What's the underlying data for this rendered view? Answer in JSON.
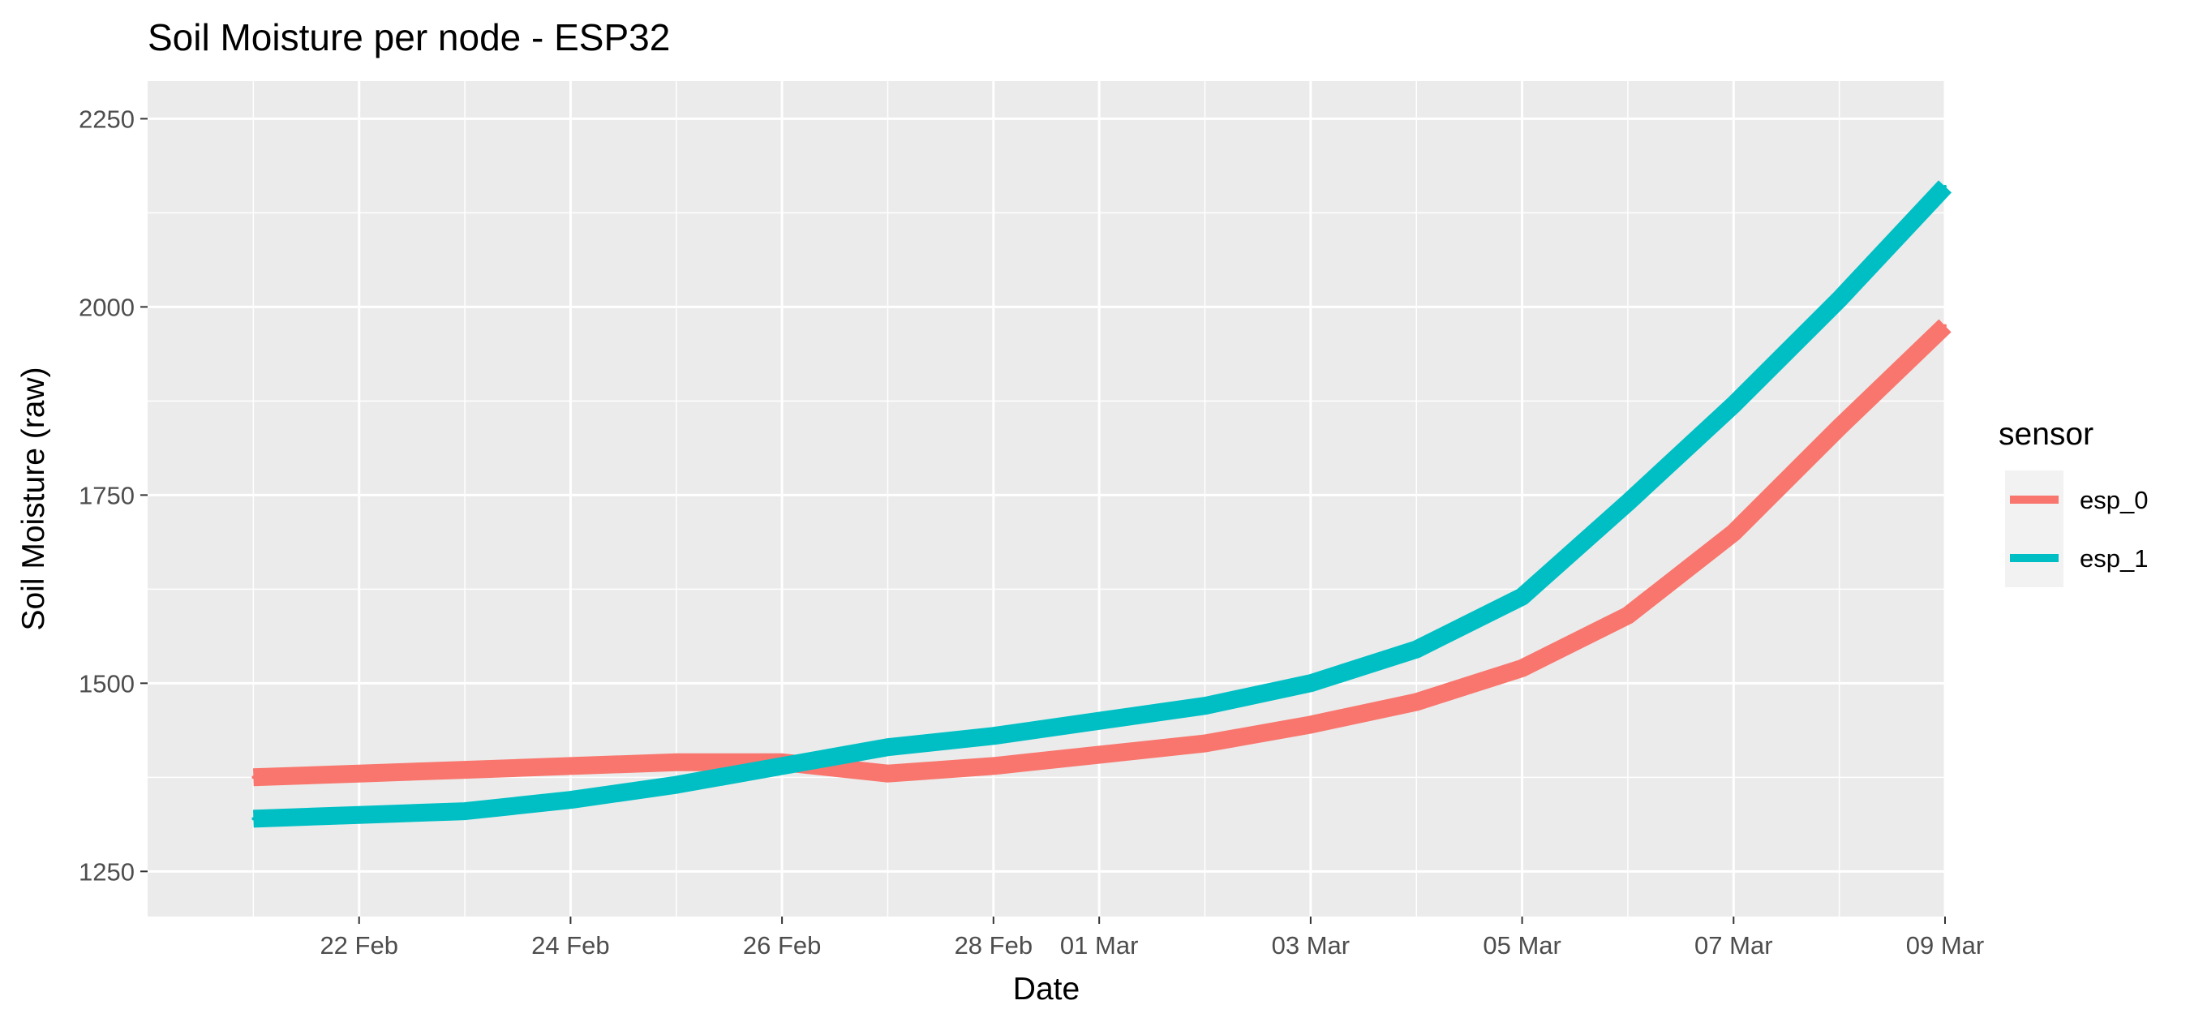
{
  "chart_data": {
    "type": "line",
    "title": "Soil Moisture per node - ESP32",
    "xlabel": "Date",
    "ylabel": "Soil Moisture (raw)",
    "xlim": [
      "2025-02-20",
      "2025-03-09"
    ],
    "ylim": [
      1190,
      2300
    ],
    "x_tick_labels": [
      "22 Feb",
      "24 Feb",
      "26 Feb",
      "28 Feb",
      "01 Mar",
      "03 Mar",
      "05 Mar",
      "07 Mar",
      "09 Mar"
    ],
    "x_ticks": [
      "2025-02-22",
      "2025-02-24",
      "2025-02-26",
      "2025-02-28",
      "2025-03-01",
      "2025-03-03",
      "2025-03-05",
      "2025-03-07",
      "2025-03-09"
    ],
    "y_ticks": [
      1250,
      1500,
      1750,
      2000,
      2250
    ],
    "grid": true,
    "legend": {
      "title": "sensor",
      "position": "right"
    },
    "series": [
      {
        "name": "esp_0",
        "color": "#F8766D",
        "x": [
          "2025-02-21",
          "2025-02-22",
          "2025-02-23",
          "2025-02-24",
          "2025-02-25",
          "2025-02-26",
          "2025-02-27",
          "2025-02-28",
          "2025-03-01",
          "2025-03-02",
          "2025-03-03",
          "2025-03-04",
          "2025-03-05",
          "2025-03-06",
          "2025-03-07",
          "2025-03-08",
          "2025-03-09"
        ],
        "values": [
          1375,
          1380,
          1385,
          1390,
          1395,
          1395,
          1380,
          1390,
          1405,
          1420,
          1445,
          1475,
          1520,
          1590,
          1700,
          1840,
          1975
        ]
      },
      {
        "name": "esp_1",
        "color": "#00BFC4",
        "x": [
          "2025-02-21",
          "2025-02-22",
          "2025-02-23",
          "2025-02-24",
          "2025-02-25",
          "2025-02-26",
          "2025-02-27",
          "2025-02-28",
          "2025-03-01",
          "2025-03-02",
          "2025-03-03",
          "2025-03-04",
          "2025-03-05",
          "2025-03-06",
          "2025-03-07",
          "2025-03-08",
          "2025-03-09"
        ],
        "values": [
          1320,
          1325,
          1330,
          1345,
          1365,
          1390,
          1415,
          1430,
          1450,
          1470,
          1500,
          1545,
          1615,
          1740,
          1870,
          2010,
          2160
        ]
      }
    ]
  }
}
